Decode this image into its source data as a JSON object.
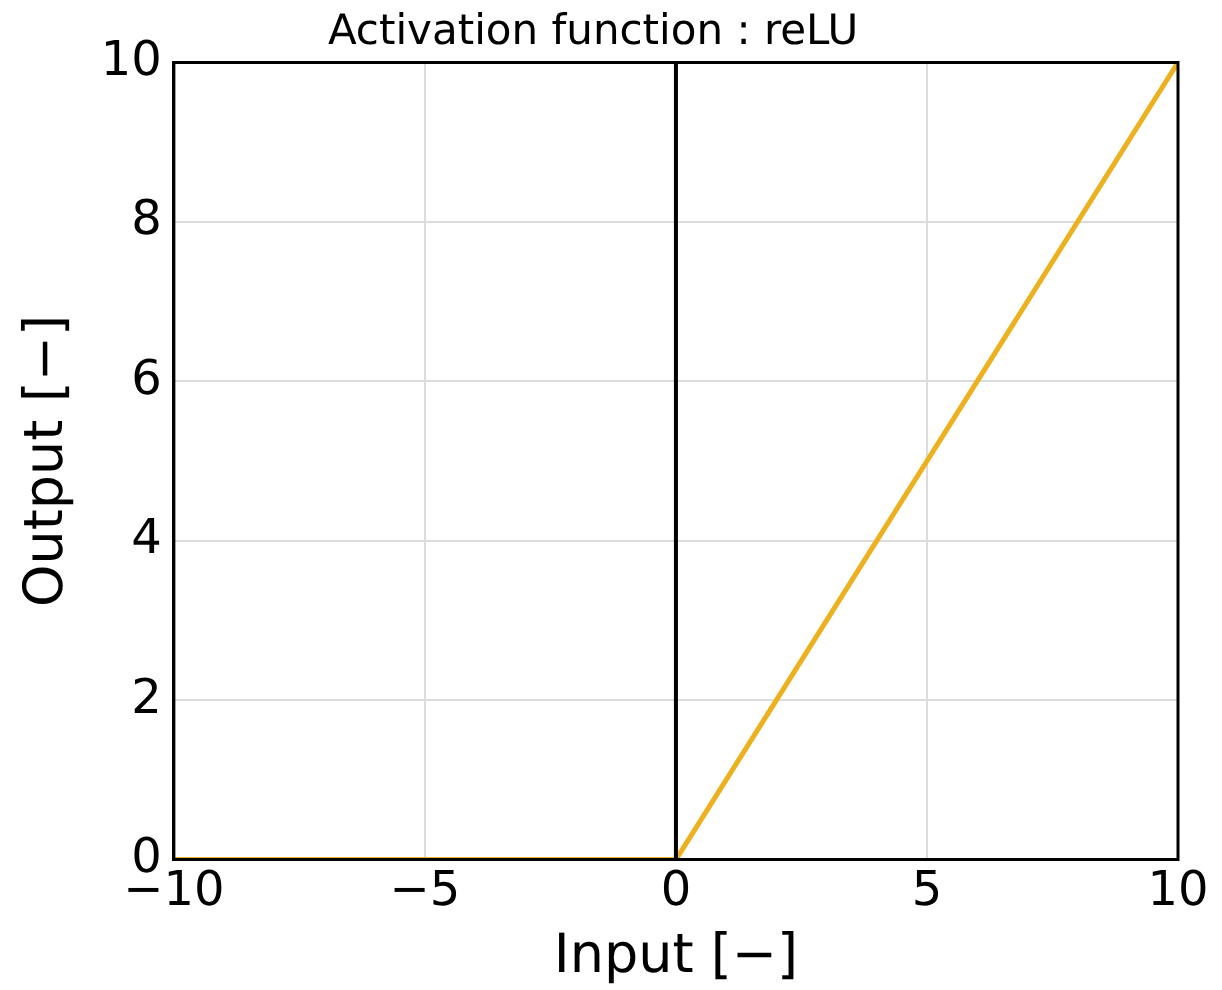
{
  "chart_data": {
    "type": "line",
    "title": "Activation function : reLU",
    "xlabel": "Input [−]",
    "ylabel": "Output [−]",
    "x": [
      -10,
      0,
      10
    ],
    "series": [
      {
        "color": "#edb120",
        "values": [
          0,
          0,
          10
        ]
      }
    ],
    "xlim": [
      -10,
      10
    ],
    "xticks": [
      {
        "value": -10,
        "label": "−10"
      },
      {
        "value": -5,
        "label": "−5"
      },
      0,
      5,
      10
    ],
    "ylim": [
      0,
      10
    ],
    "yticks": [
      0,
      2,
      4,
      6,
      8,
      10
    ],
    "ref_lines": [
      {
        "axis": "x",
        "value": 0,
        "color": "#000000"
      }
    ],
    "grid": true,
    "legend": false,
    "marker": "none",
    "line_style": "solid"
  }
}
